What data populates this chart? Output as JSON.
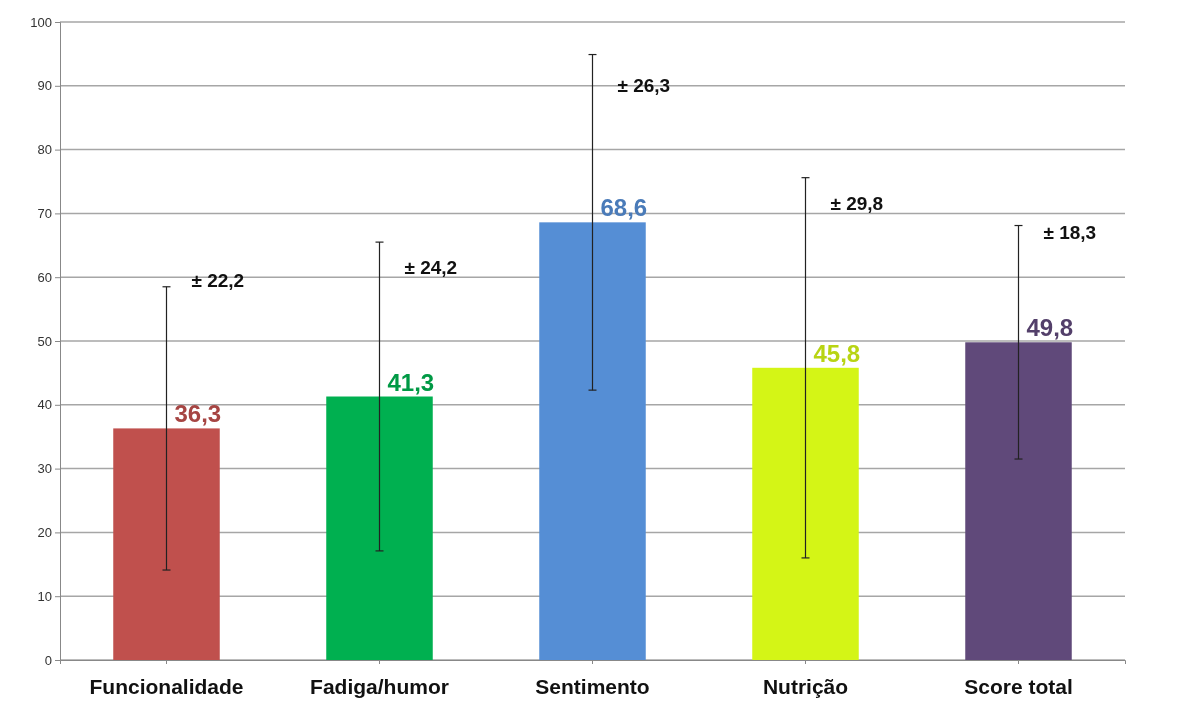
{
  "chart_data": {
    "type": "bar",
    "categories": [
      "Funcionalidade",
      "Fadiga/humor",
      "Sentimento",
      "Nutrição",
      "Score total"
    ],
    "values": [
      36.3,
      41.3,
      68.6,
      45.8,
      49.8
    ],
    "colors": [
      "#c0504d",
      "#00b050",
      "#558ed5",
      "#d4f516",
      "#60497a"
    ],
    "errors": [
      22.2,
      24.2,
      26.3,
      29.8,
      18.3
    ],
    "value_labels": [
      "36,3",
      "41,3",
      "68,6",
      "45,8",
      "49,8"
    ],
    "annotations": [
      {
        "text": "± 22,2",
        "x": "Funcionalidade",
        "y": 58.5
      },
      {
        "text": "± 24,2",
        "x": "Fadiga/humor",
        "y": 60.5
      },
      {
        "text": "± 26,3",
        "x": "Sentimento",
        "y": 89
      },
      {
        "text": "± 29,8",
        "x": "Nutrição",
        "y": 70.5
      },
      {
        "text": "± 18,3",
        "x": "Score total",
        "y": 66
      }
    ],
    "ylim": [
      0,
      100
    ],
    "yticks": [
      0,
      10,
      20,
      30,
      40,
      50,
      60,
      70,
      80,
      90,
      100
    ],
    "grid": "y"
  }
}
